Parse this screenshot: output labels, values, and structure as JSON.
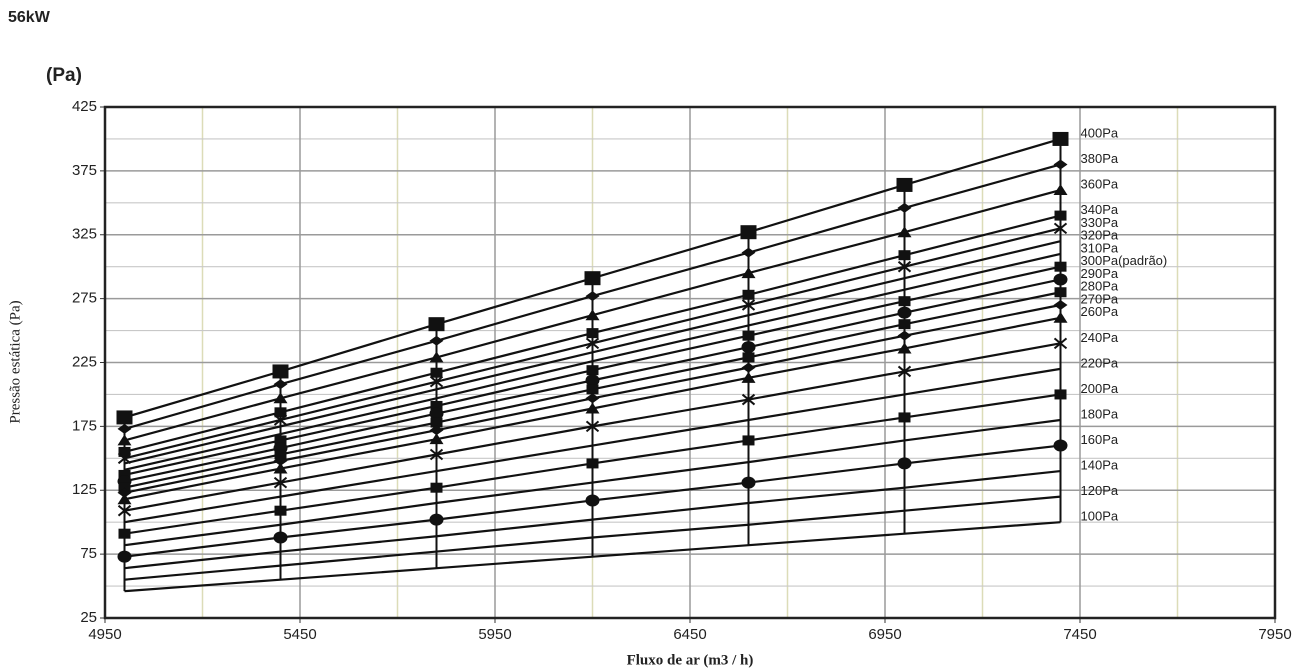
{
  "chart_data": {
    "type": "line",
    "title": "56kW",
    "y_unit": "(Pa)",
    "x_label": "Fluxo de ar (m3 / h)",
    "y_label": "Pressão estática (Pa)",
    "x": [
      5000,
      5400,
      5800,
      6200,
      6600,
      7000,
      7400
    ],
    "xlim": [
      4950,
      7950
    ],
    "xticks": [
      4950,
      5450,
      5950,
      6450,
      6950,
      7450,
      7950
    ],
    "ylim": [
      25,
      425
    ],
    "yticks": [
      25,
      75,
      125,
      175,
      225,
      275,
      325,
      375,
      425
    ],
    "grid": true,
    "color": "#111111",
    "series": [
      {
        "name": "400Pa",
        "marker": "big-square",
        "values": [
          182,
          218,
          255,
          291,
          327,
          364,
          400
        ]
      },
      {
        "name": "380Pa",
        "marker": "diamond",
        "values": [
          173,
          208,
          242,
          277,
          311,
          346,
          380
        ]
      },
      {
        "name": "360Pa",
        "marker": "triangle",
        "values": [
          164,
          197,
          229,
          262,
          295,
          327,
          360
        ]
      },
      {
        "name": "340Pa",
        "marker": "square",
        "values": [
          155,
          186,
          217,
          248,
          278,
          309,
          340
        ]
      },
      {
        "name": "330Pa",
        "marker": "cross",
        "values": [
          150,
          180,
          210,
          240,
          270,
          300,
          330
        ]
      },
      {
        "name": "320Pa",
        "marker": "none",
        "values": [
          146,
          175,
          204,
          233,
          262,
          291,
          320
        ]
      },
      {
        "name": "310Pa",
        "marker": "none",
        "values": [
          141,
          169,
          197,
          226,
          254,
          282,
          310
        ]
      },
      {
        "name": "300Pa(padrão)",
        "marker": "square",
        "values": [
          137,
          164,
          191,
          219,
          246,
          273,
          300
        ]
      },
      {
        "name": "290Pa",
        "marker": "circle",
        "values": [
          132,
          158,
          185,
          211,
          237,
          264,
          290
        ]
      },
      {
        "name": "280Pa",
        "marker": "square",
        "values": [
          127,
          153,
          178,
          204,
          229,
          255,
          280
        ]
      },
      {
        "name": "270Pa",
        "marker": "diamond",
        "values": [
          123,
          148,
          172,
          197,
          221,
          246,
          270
        ]
      },
      {
        "name": "260Pa",
        "marker": "triangle",
        "values": [
          118,
          142,
          165,
          189,
          213,
          236,
          260
        ]
      },
      {
        "name": "240Pa",
        "marker": "cross",
        "values": [
          109,
          131,
          153,
          175,
          196,
          218,
          240
        ]
      },
      {
        "name": "220Pa",
        "marker": "none",
        "values": [
          100,
          120,
          140,
          160,
          180,
          200,
          220
        ]
      },
      {
        "name": "200Pa",
        "marker": "square",
        "values": [
          91,
          109,
          127,
          146,
          164,
          182,
          200
        ]
      },
      {
        "name": "180Pa",
        "marker": "none",
        "values": [
          82,
          98,
          115,
          131,
          147,
          164,
          180
        ]
      },
      {
        "name": "160Pa",
        "marker": "circle",
        "values": [
          73,
          88,
          102,
          117,
          131,
          146,
          160
        ]
      },
      {
        "name": "140Pa",
        "marker": "none",
        "values": [
          64,
          77,
          89,
          102,
          115,
          127,
          140
        ]
      },
      {
        "name": "120Pa",
        "marker": "none",
        "values": [
          55,
          66,
          77,
          88,
          98,
          109,
          120
        ]
      },
      {
        "name": "100Pa",
        "marker": "none",
        "values": [
          46,
          55,
          64,
          73,
          82,
          91,
          100
        ]
      }
    ]
  }
}
